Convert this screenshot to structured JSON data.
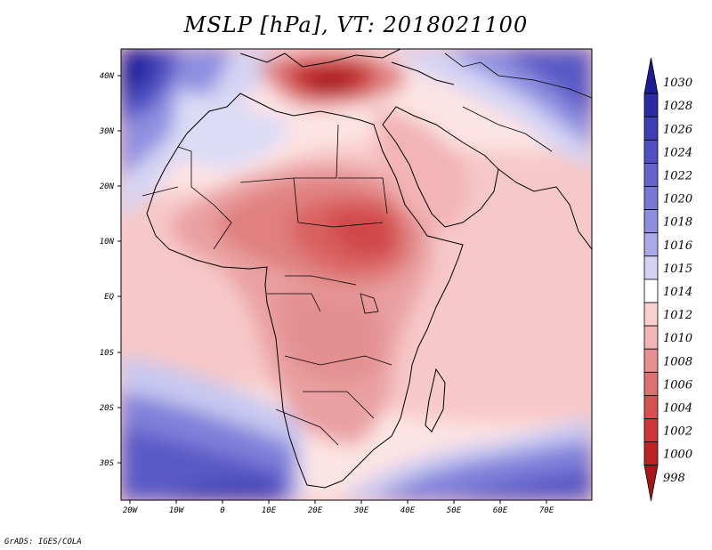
{
  "title": "MSLP [hPa], VT: 2018021100",
  "credit": "GrADS: IGES/COLA",
  "lat_labels": [
    "40N",
    "30N",
    "20N",
    "10N",
    "EQ",
    "10S",
    "20S",
    "30S"
  ],
  "lon_labels": [
    "20W",
    "10W",
    "0",
    "10E",
    "20E",
    "30E",
    "40E",
    "50E",
    "60E",
    "70E"
  ],
  "colorbar": {
    "levels": [
      "1030",
      "1028",
      "1026",
      "1024",
      "1022",
      "1020",
      "1018",
      "1016",
      "1015",
      "1014",
      "1012",
      "1010",
      "1008",
      "1006",
      "1004",
      "1002",
      "1000",
      "998"
    ],
    "colors": [
      "#1c1c96",
      "#2b2ba6",
      "#3d3db4",
      "#5050c2",
      "#6464cc",
      "#7777d6",
      "#8e8ee0",
      "#aaaaea",
      "#d2d2f4",
      "#ffffff",
      "#f9d0d0",
      "#f3b4b4",
      "#e89090",
      "#df7070",
      "#d65252",
      "#cc3838",
      "#bc2424",
      "#a81616"
    ]
  },
  "map": {
    "extent_lon": [
      -22,
      80
    ],
    "extent_lat": [
      -37,
      45
    ],
    "regions": [
      "Africa",
      "Arabian Peninsula",
      "Indian Ocean",
      "Atlantic Ocean",
      "Mediterranean"
    ],
    "high_pressure_areas": [
      "North Atlantic",
      "Central Asia",
      "South Atlantic",
      "Southern Indian Ocean"
    ],
    "low_pressure_areas": [
      "Eastern Mediterranean",
      "Sudan / Central Africa"
    ]
  }
}
